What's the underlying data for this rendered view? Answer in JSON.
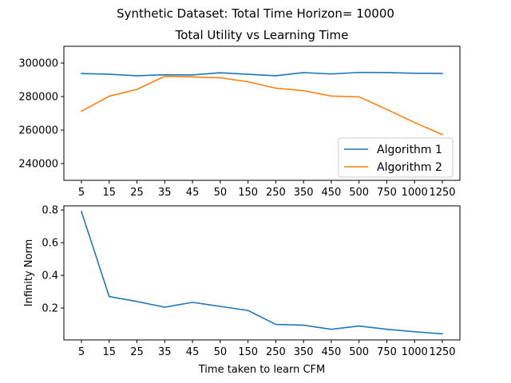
{
  "figure": {
    "suptitle": "Synthetic Dataset: Total Time Horizon= 10000"
  },
  "chart_data": [
    {
      "type": "line",
      "title": "Total Utility vs Learning Time",
      "xlabel": "",
      "ylabel": "",
      "categories": [
        "5",
        "15",
        "25",
        "35",
        "45",
        "50",
        "150",
        "250",
        "350",
        "450",
        "500",
        "750",
        "1000",
        "1250"
      ],
      "ylim": [
        230000,
        310000
      ],
      "yticks": [
        240000,
        260000,
        280000,
        300000
      ],
      "grid": false,
      "legend": "lower-right",
      "series": [
        {
          "name": "Algorithm 1",
          "color": "#1f77b4",
          "values": [
            293700,
            293300,
            292400,
            293000,
            292900,
            294200,
            293300,
            292400,
            294300,
            293500,
            294400,
            294300,
            293900,
            293800
          ]
        },
        {
          "name": "Algorithm 2",
          "color": "#ff7f0e",
          "values": [
            271300,
            280200,
            284300,
            292100,
            291700,
            291200,
            288800,
            285000,
            283500,
            280300,
            279800,
            272300,
            264500,
            257300
          ]
        }
      ]
    },
    {
      "type": "line",
      "title": "",
      "xlabel": "Time taken to learn CFM",
      "ylabel": "Infinity Norm",
      "categories": [
        "5",
        "15",
        "25",
        "35",
        "45",
        "50",
        "150",
        "250",
        "350",
        "450",
        "500",
        "750",
        "1000",
        "1250"
      ],
      "ylim": [
        0.005,
        0.825
      ],
      "yticks": [
        0.2,
        0.4,
        0.6,
        0.8
      ],
      "grid": false,
      "series": [
        {
          "color": "#1f77b4",
          "values": [
            0.79,
            0.27,
            0.24,
            0.205,
            0.235,
            0.21,
            0.185,
            0.1,
            0.095,
            0.07,
            0.09,
            0.07,
            0.055,
            0.042
          ]
        }
      ]
    }
  ]
}
